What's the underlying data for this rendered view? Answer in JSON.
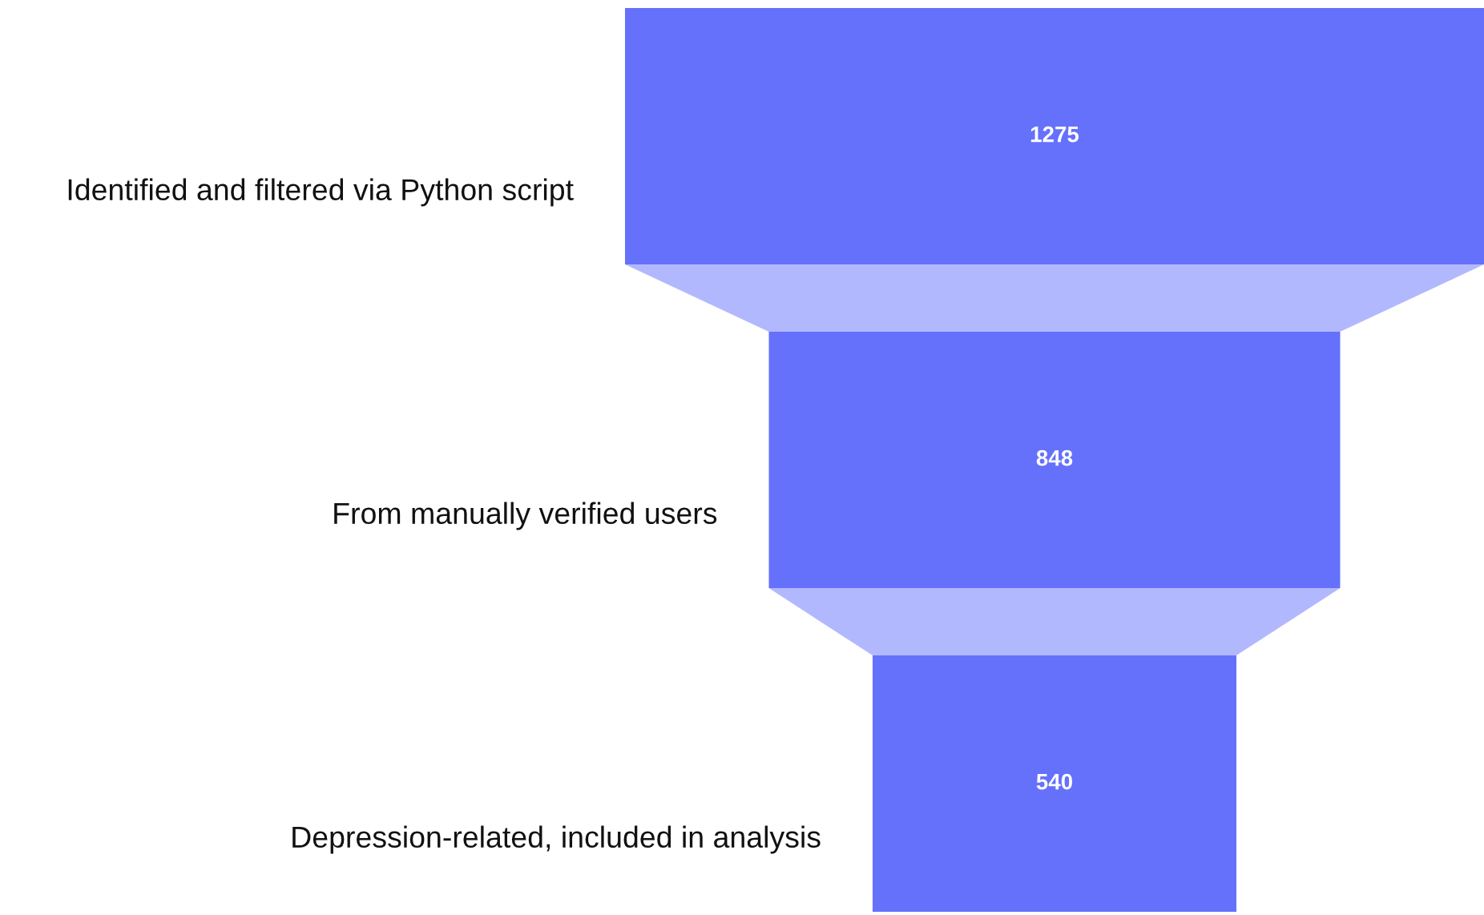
{
  "chart_data": {
    "type": "other",
    "categories": [
      "Identified and filtered via Python script",
      "From manually verified users",
      "Depression-related, included in analysis"
    ],
    "values": [
      1275,
      848,
      540
    ],
    "color": "#6571fb",
    "data_labels": true
  }
}
